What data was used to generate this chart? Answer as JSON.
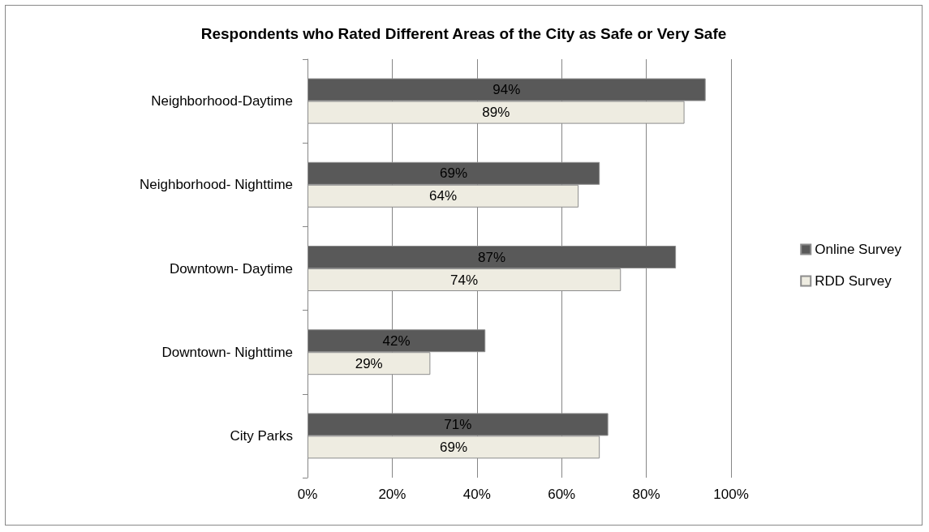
{
  "chart_data": {
    "type": "bar",
    "orientation": "horizontal",
    "title": "Respondents who Rated Different Areas of the City as Safe or Very Safe",
    "categories": [
      "Neighborhood-Daytime",
      "Neighborhood- Nighttime",
      "Downtown- Daytime",
      "Downtown- Nighttime",
      "City Parks"
    ],
    "series": [
      {
        "name": "Online Survey",
        "color": "#595959",
        "values": [
          94,
          69,
          87,
          42,
          71
        ],
        "value_labels": [
          "94%",
          "69%",
          "87%",
          "42%",
          "71%"
        ]
      },
      {
        "name": "RDD Survey",
        "color": "#eeece1",
        "values": [
          89,
          64,
          74,
          29,
          69
        ],
        "value_labels": [
          "89%",
          "64%",
          "74%",
          "29%",
          "69%"
        ]
      }
    ],
    "xlim": [
      0,
      100
    ],
    "xticks": [
      {
        "value": 0,
        "label": "0%"
      },
      {
        "value": 20,
        "label": "20%"
      },
      {
        "value": 40,
        "label": "40%"
      },
      {
        "value": 60,
        "label": "60%"
      },
      {
        "value": 80,
        "label": "80%"
      },
      {
        "value": 100,
        "label": "100%"
      }
    ],
    "grid": "x",
    "legend": "right"
  }
}
